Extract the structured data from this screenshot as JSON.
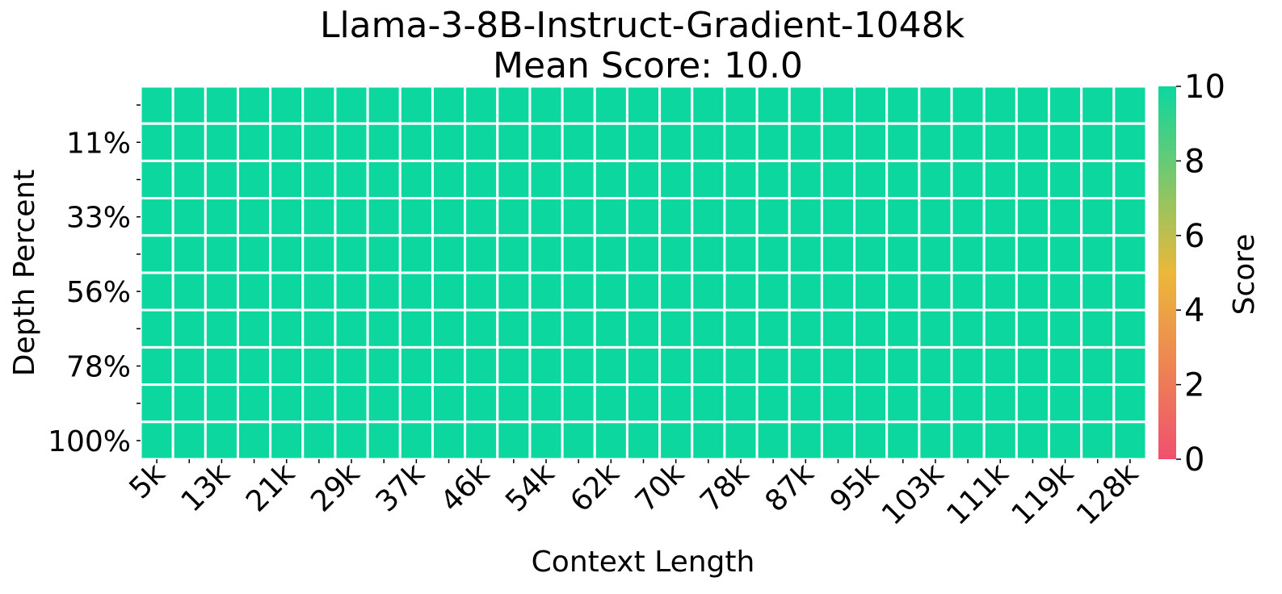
{
  "chart_data": {
    "type": "heatmap",
    "title": "Llama-3-8B-Instruct-Gradient-1048k",
    "subtitle": "Mean Score: 10.0",
    "xlabel": "Context Length",
    "ylabel": "Depth Percent",
    "colorbar_label": "Score",
    "x_tick_labels": [
      "5k",
      "13k",
      "21k",
      "29k",
      "37k",
      "46k",
      "54k",
      "62k",
      "70k",
      "78k",
      "87k",
      "95k",
      "103k",
      "111k",
      "119k",
      "128k"
    ],
    "y_tick_labels": [
      "11%",
      "33%",
      "56%",
      "78%",
      "100%"
    ],
    "colorbar_ticks": [
      "0",
      "2",
      "4",
      "6",
      "8",
      "10"
    ],
    "vmin": 0,
    "vmax": 10,
    "n_cols": 31,
    "n_rows": 10,
    "value": 10,
    "colors": {
      "low": "#f0506e",
      "mid": "#ebb839",
      "high": "#0cd79f",
      "grid": "#ffffff",
      "text": "#000000"
    }
  }
}
